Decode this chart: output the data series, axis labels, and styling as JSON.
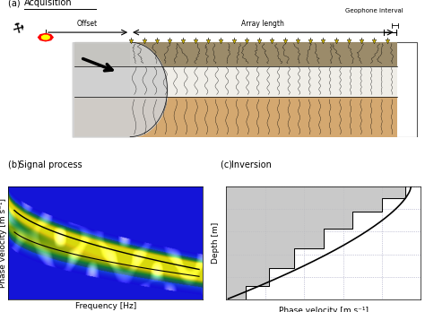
{
  "title_a": "(a) Acquisition",
  "label_offset": "Offset",
  "label_array": "Array length",
  "label_geophone": "Geophone interval",
  "xlabel_b": "Frequency [Hz]",
  "ylabel_b": "Phase velocity [m s⁻¹]",
  "xlabel_c": "Phase velocity [m s⁻¹]",
  "ylabel_c": "Depth [m]",
  "bg_color": "#ffffff",
  "geophone_color": "#D4B800",
  "inversion_fill": "#C0C0C0",
  "grid_color": "#9999BB",
  "vel_steps": [
    0.92,
    0.8,
    0.65,
    0.5,
    0.35,
    0.22,
    0.1
  ],
  "depth_steps": [
    0.0,
    0.1,
    0.22,
    0.37,
    0.55,
    0.72,
    0.88,
    1.0
  ]
}
